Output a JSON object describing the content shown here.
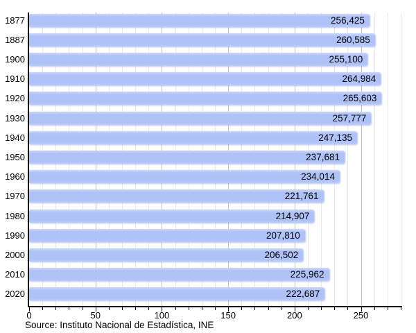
{
  "chart_data": {
    "type": "bar",
    "orientation": "horizontal",
    "title": "",
    "categories": [
      "1877",
      "1887",
      "1900",
      "1910",
      "1920",
      "1930",
      "1940",
      "1950",
      "1960",
      "1970",
      "1980",
      "1990",
      "2000",
      "2010",
      "2020"
    ],
    "values": [
      256425,
      260585,
      255100,
      264984,
      265603,
      257777,
      247135,
      237681,
      234014,
      221761,
      214907,
      207810,
      206502,
      225962,
      222687
    ],
    "value_labels": [
      "256,425",
      "260,585",
      "255,100",
      "264,984",
      "265,603",
      "257,777",
      "247,135",
      "237,681",
      "234,014",
      "221,761",
      "214,907",
      "207,810",
      "206,502",
      "225,962",
      "222,687"
    ],
    "x_ticks": [
      0,
      50,
      100,
      150,
      200,
      250
    ],
    "x_minor_step": 10,
    "xlim_thousands": [
      0,
      280
    ],
    "grid": "vertical-minor-and-major",
    "legend": "none",
    "source": "Source: Instituto Nacional de Estadística, INE",
    "colors": {
      "bar": "#aec2f7",
      "bar_highlight": "#ccd8fb",
      "grid_minor": "#e9e9e9",
      "grid_major": "#c3c3c3",
      "axis": "#000000",
      "text": "#000000"
    }
  }
}
